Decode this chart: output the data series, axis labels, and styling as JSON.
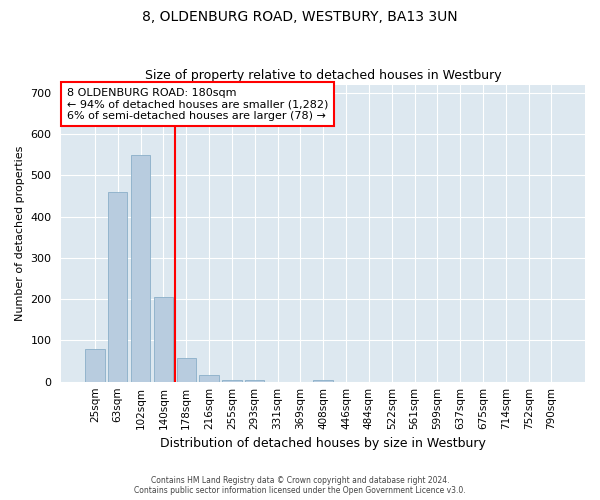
{
  "title1": "8, OLDENBURG ROAD, WESTBURY, BA13 3UN",
  "title2": "Size of property relative to detached houses in Westbury",
  "xlabel": "Distribution of detached houses by size in Westbury",
  "ylabel": "Number of detached properties",
  "categories": [
    "25sqm",
    "63sqm",
    "102sqm",
    "140sqm",
    "178sqm",
    "216sqm",
    "255sqm",
    "293sqm",
    "331sqm",
    "369sqm",
    "408sqm",
    "446sqm",
    "484sqm",
    "522sqm",
    "561sqm",
    "599sqm",
    "637sqm",
    "675sqm",
    "714sqm",
    "752sqm",
    "790sqm"
  ],
  "values": [
    80,
    460,
    550,
    205,
    57,
    15,
    5,
    5,
    0,
    0,
    5,
    0,
    0,
    0,
    0,
    0,
    0,
    0,
    0,
    0,
    0
  ],
  "bar_color": "#b8ccdf",
  "bar_edge_color": "#8aafc8",
  "annotation_line1": "8 OLDENBURG ROAD: 180sqm",
  "annotation_line2": "← 94% of detached houses are smaller (1,282)",
  "annotation_line3": "6% of semi-detached houses are larger (78) →",
  "annotation_box_color": "white",
  "annotation_box_edge": "red",
  "redline_color": "red",
  "redline_index": 3.5,
  "ylim": [
    0,
    720
  ],
  "yticks": [
    0,
    100,
    200,
    300,
    400,
    500,
    600,
    700
  ],
  "bg_color": "#dde8f0",
  "footer1": "Contains HM Land Registry data © Crown copyright and database right 2024.",
  "footer2": "Contains public sector information licensed under the Open Government Licence v3.0."
}
